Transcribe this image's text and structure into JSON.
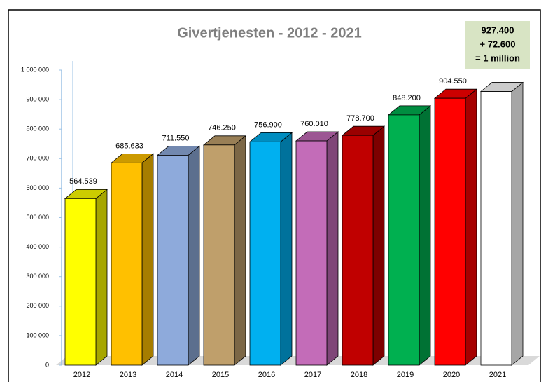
{
  "chart_data": {
    "type": "bar3d",
    "title": "Givertjenesten -  2012 - 2021",
    "categories": [
      "2012",
      "2013",
      "2014",
      "2015",
      "2016",
      "2017",
      "2018",
      "2019",
      "2020",
      "2021"
    ],
    "values": [
      564539,
      685633,
      711550,
      746250,
      756900,
      760010,
      778700,
      848200,
      904550,
      927400
    ],
    "value_labels": [
      "564.539",
      "685.633",
      "711.550",
      "746.250",
      "756.900",
      "760.010",
      "778.700",
      "848.200",
      "904.550",
      null
    ],
    "colors": [
      "#ffff00",
      "#ffc000",
      "#8eaadb",
      "#bf9f6b",
      "#00b0f0",
      "#c36cb8",
      "#c00000",
      "#00b050",
      "#ff0000",
      "#ffffff"
    ],
    "ylim": [
      0,
      1000000
    ],
    "yticks": [
      0,
      {
        "value": 100000,
        "label": "100 000"
      },
      {
        "value": 200000,
        "label": "200 000"
      },
      {
        "value": 300000,
        "label": "300 000"
      },
      {
        "value": 400000,
        "label": "400 000"
      },
      {
        "value": 500000,
        "label": "500 000"
      },
      {
        "value": 600000,
        "label": "600 000"
      },
      {
        "value": 700000,
        "label": "700 000"
      },
      {
        "value": 800000,
        "label": "800 000"
      },
      {
        "value": 900000,
        "label": "900 000"
      },
      {
        "value": 1000000,
        "label": "1 000 000"
      }
    ],
    "annotation": [
      "927.400",
      "+ 72.600",
      "= 1 million"
    ]
  }
}
